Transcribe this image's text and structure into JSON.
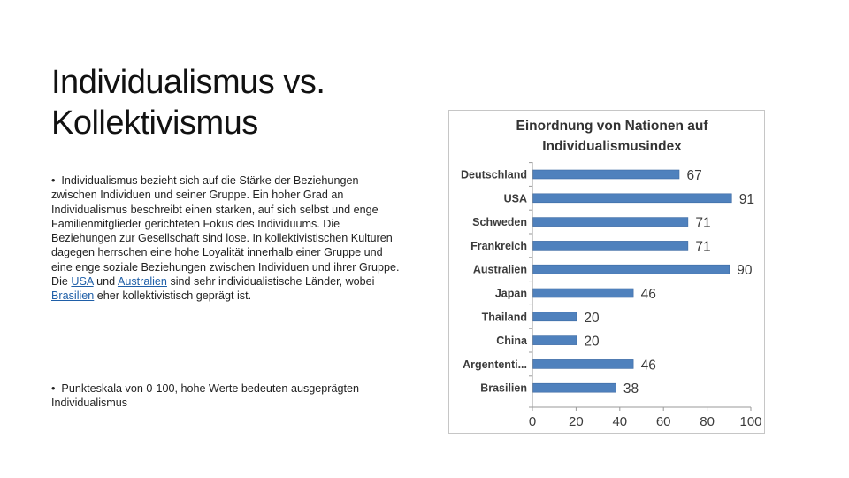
{
  "slide": {
    "title_line1": "Individualismus vs.",
    "title_line2": "Kollektivismus",
    "bullet1": {
      "bullet": "•",
      "text_a": "Individualismus bezieht sich auf die Stärke der Beziehungen zwischen Individuen und seiner Gruppe. Ein hoher Grad an Individualismus beschreibt einen starken, auf sich selbst und enge Familienmitglieder gerichteten Fokus des Individuums. Die Beziehungen zur Gesellschaft sind lose. In kollektivistischen Kulturen dagegen herrschen eine hohe Loyalität innerhalb einer Gruppe und eine enge soziale Beziehungen zwischen Individuen und ihrer Gruppe. Die ",
      "link_usa": "USA",
      "text_b": " und ",
      "link_australien": "Australien",
      "text_c": " sind sehr individualistische Länder, wobei ",
      "link_brasilien": "Brasilien",
      "text_d": " eher kollektivistisch geprägt ist."
    },
    "bullet2": {
      "bullet": "•",
      "text": "Punkteskala von 0-100, hohe Werte bedeuten ausgeprägten Individualismus"
    }
  },
  "colors": {
    "bar": "#4f81bd",
    "bar_edge": "#3c6aa3",
    "axis": "#9a9a9a",
    "label": "#3b3b3b"
  },
  "chart_data": {
    "type": "bar",
    "orientation": "horizontal",
    "title_line1": "Einordnung von Nationen auf",
    "title_line2": "Individualismusindex",
    "categories": [
      "Deutschland",
      "USA",
      "Schweden",
      "Frankreich",
      "Australien",
      "Japan",
      "Thailand",
      "China",
      "Argententi...",
      "Brasilien"
    ],
    "values": [
      67,
      91,
      71,
      71,
      90,
      46,
      20,
      20,
      46,
      38
    ],
    "xlim": [
      0,
      100
    ],
    "xticks": [
      0,
      20,
      40,
      60,
      80,
      100
    ],
    "grid": false,
    "legend": "none",
    "data_labels": true
  }
}
